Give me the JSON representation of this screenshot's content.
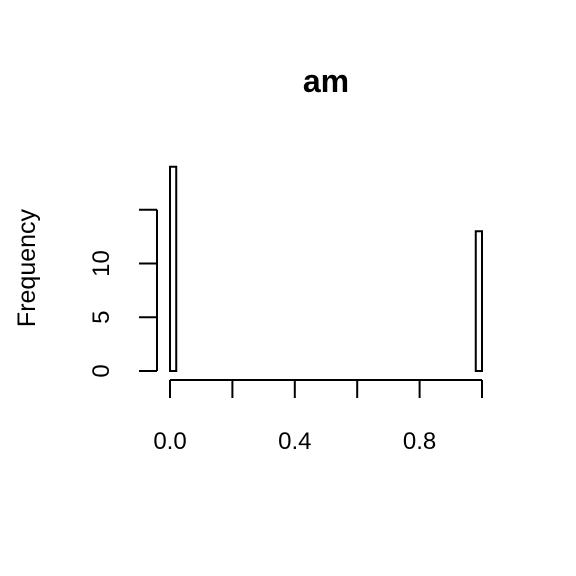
{
  "chart_data": {
    "type": "bar",
    "title": "am",
    "xlabel": "",
    "ylabel": "Frequency",
    "xlim": [
      0,
      1
    ],
    "ylim": [
      0,
      19
    ],
    "x_ticks": [
      {
        "value": 0.0,
        "label": "0.0"
      },
      {
        "value": 0.2,
        "label": ""
      },
      {
        "value": 0.4,
        "label": "0.4"
      },
      {
        "value": 0.6,
        "label": ""
      },
      {
        "value": 0.8,
        "label": "0.8"
      },
      {
        "value": 1.0,
        "label": ""
      }
    ],
    "y_ticks": [
      {
        "value": 0,
        "label": "0"
      },
      {
        "value": 5,
        "label": "5"
      },
      {
        "value": 10,
        "label": "10"
      },
      {
        "value": 15,
        "label": ""
      }
    ],
    "bins": [
      {
        "start": 0.0,
        "end": 0.02,
        "count": 19
      },
      {
        "start": 0.02,
        "end": 0.98,
        "count": 0
      },
      {
        "start": 0.98,
        "end": 1.0,
        "count": 13
      }
    ],
    "grid": false,
    "legend": "none"
  }
}
